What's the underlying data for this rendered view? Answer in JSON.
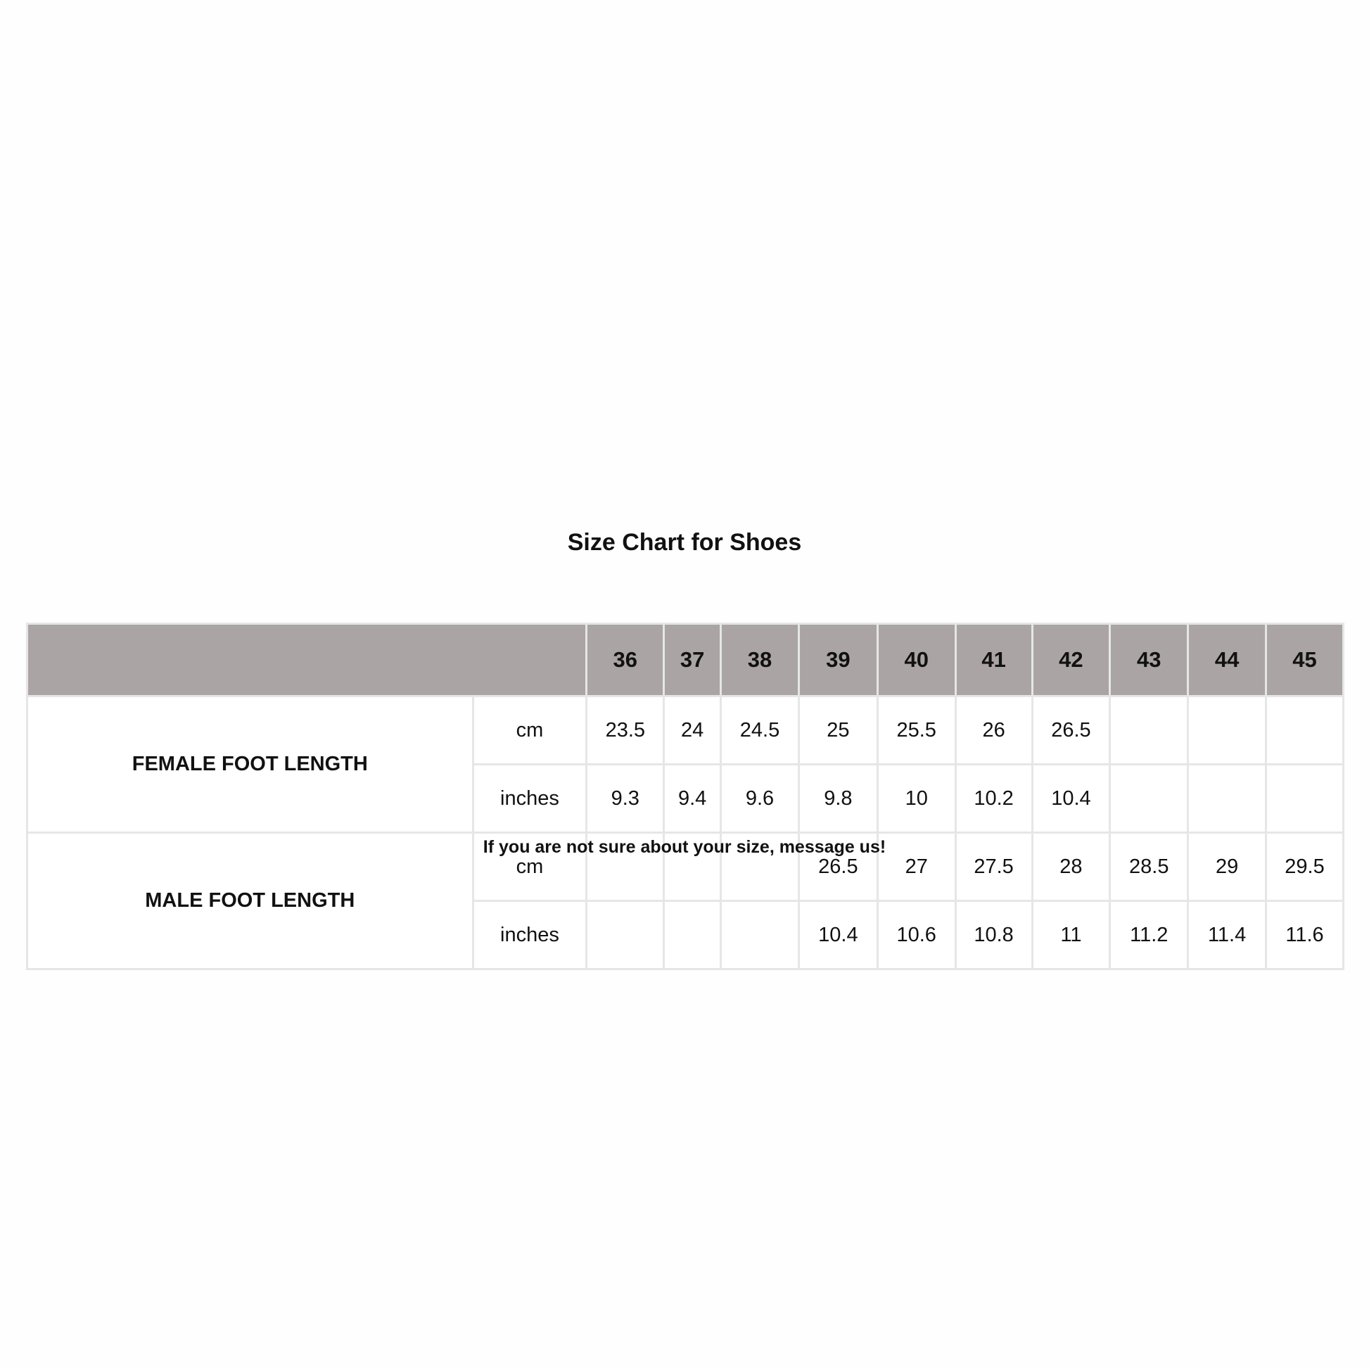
{
  "title": "Size Chart for Shoes",
  "sizes": [
    "36",
    "37",
    "38",
    "39",
    "40",
    "41",
    "42",
    "43",
    "44",
    "45"
  ],
  "groups": [
    {
      "label": "FEMALE FOOT LENGTH",
      "rows": [
        {
          "unit": "cm",
          "values": [
            "23.5",
            "24",
            "24.5",
            "25",
            "25.5",
            "26",
            "26.5",
            "",
            "",
            ""
          ]
        },
        {
          "unit": "inches",
          "values": [
            "9.3",
            "9.4",
            "9.6",
            "9.8",
            "10",
            "10.2",
            "10.4",
            "",
            "",
            ""
          ]
        }
      ]
    },
    {
      "label": "MALE FOOT LENGTH",
      "rows": [
        {
          "unit": "cm",
          "values": [
            "",
            "",
            "",
            "26.5",
            "27",
            "27.5",
            "28",
            "28.5",
            "29",
            "29.5"
          ]
        },
        {
          "unit": "inches",
          "values": [
            "",
            "",
            "",
            "10.4",
            "10.6",
            "10.8",
            "11",
            "11.2",
            "11.4",
            "11.6"
          ]
        }
      ]
    }
  ],
  "footer": "If you are not sure about your size, message us!",
  "colors": {
    "header_bg": "#aaa4a4",
    "border": "#e6e6e6"
  }
}
